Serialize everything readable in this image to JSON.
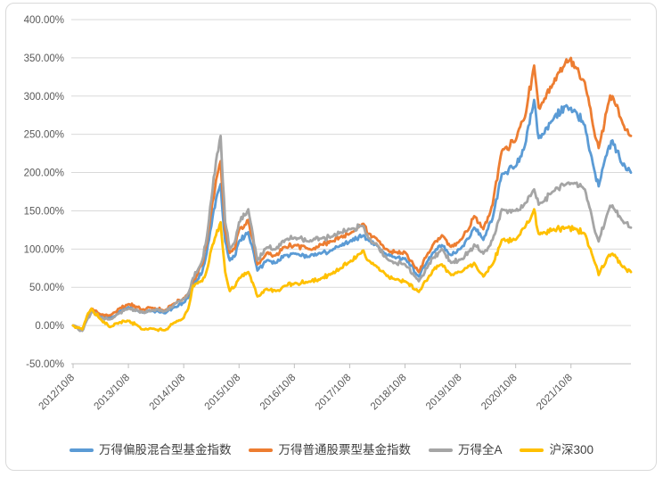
{
  "chart_data": {
    "type": "line",
    "title": "",
    "grid": "horizontal",
    "legend_position": "bottom",
    "x_axis": {
      "tick_labels": [
        "2012/10/8",
        "2013/10/8",
        "2014/10/8",
        "2015/10/8",
        "2016/10/8",
        "2017/10/8",
        "2018/10/8",
        "2019/10/8",
        "2020/10/8",
        "2021/10/8"
      ],
      "tick_months": [
        0,
        12,
        24,
        36,
        48,
        60,
        72,
        84,
        96,
        108
      ]
    },
    "y_axis": {
      "tick_labels": [
        "400.00%",
        "350.00%",
        "300.00%",
        "250.00%",
        "200.00%",
        "150.00%",
        "100.00%",
        "50.00%",
        "0.00%",
        "-50.00%"
      ],
      "tick_values": [
        400,
        350,
        300,
        250,
        200,
        150,
        100,
        50,
        0,
        -50
      ],
      "ylim": [
        -50,
        400
      ],
      "format": "percent"
    },
    "x_months": [
      0,
      1,
      2,
      3,
      4,
      6,
      8,
      10,
      12,
      14,
      15,
      17,
      20,
      22,
      24,
      25,
      26,
      27,
      28,
      29,
      30,
      31,
      32,
      33,
      34,
      35,
      36,
      38,
      40,
      42,
      44,
      46,
      48,
      51,
      54,
      56,
      58,
      60,
      63,
      64,
      66,
      68,
      70,
      72,
      75,
      77,
      78,
      80,
      82,
      84,
      86,
      87,
      89,
      91,
      93,
      96,
      98,
      100,
      101,
      102,
      104,
      107,
      109,
      111,
      113,
      114,
      116,
      117,
      119,
      121
    ],
    "x_dates": [
      "2012/10",
      "2012/11",
      "2012/12",
      "2013/1",
      "2013/2",
      "2013/4",
      "2013/6",
      "2013/8",
      "2013/10",
      "2013/12",
      "2014/1",
      "2014/3",
      "2014/6",
      "2014/8",
      "2014/10",
      "2014/11",
      "2014/12",
      "2015/1",
      "2015/2",
      "2015/3",
      "2015/4",
      "2015/5",
      "2015/6",
      "2015/7",
      "2015/8",
      "2015/9",
      "2015/10",
      "2015/12",
      "2016/2",
      "2016/4",
      "2016/6",
      "2016/8",
      "2016/10",
      "2017/1",
      "2017/4",
      "2017/6",
      "2017/8",
      "2017/10",
      "2018/1",
      "2018/2",
      "2018/4",
      "2018/6",
      "2018/8",
      "2018/10",
      "2019/1",
      "2019/3",
      "2019/4",
      "2019/6",
      "2019/8",
      "2019/10",
      "2019/12",
      "2020/1",
      "2020/3",
      "2020/5",
      "2020/7",
      "2020/10",
      "2020/12",
      "2021/2",
      "2021/3",
      "2021/4",
      "2021/6",
      "2021/9",
      "2021/11",
      "2022/1",
      "2022/3",
      "2022/4",
      "2022/6",
      "2022/7",
      "2022/9",
      "2022/11"
    ],
    "series": [
      {
        "name": "万得偏股混合型基金指数",
        "color": "#5B9BD5",
        "values": [
          0,
          -3,
          -6,
          8,
          20,
          12,
          10,
          18,
          24,
          20,
          17,
          19,
          16,
          24,
          30,
          36,
          52,
          60,
          70,
          95,
          130,
          165,
          185,
          110,
          85,
          90,
          110,
          122,
          72,
          85,
          82,
          92,
          94,
          90,
          95,
          98,
          105,
          110,
          118,
          112,
          104,
          92,
          88,
          88,
          64,
          85,
          95,
          105,
          92,
          100,
          115,
          128,
          112,
          140,
          198,
          208,
          235,
          295,
          245,
          250,
          268,
          288,
          280,
          262,
          205,
          182,
          230,
          242,
          212,
          200
        ]
      },
      {
        "name": "万得普通股票型基金指数",
        "color": "#ED7D31",
        "values": [
          0,
          -3,
          -6,
          9,
          22,
          14,
          13,
          22,
          28,
          24,
          21,
          23,
          20,
          29,
          36,
          42,
          58,
          68,
          80,
          108,
          150,
          190,
          215,
          125,
          95,
          100,
          125,
          138,
          80,
          95,
          92,
          103,
          105,
          100,
          106,
          110,
          116,
          120,
          133,
          120,
          112,
          100,
          96,
          96,
          70,
          95,
          105,
          118,
          103,
          112,
          128,
          143,
          126,
          158,
          228,
          242,
          272,
          340,
          285,
          292,
          315,
          348,
          338,
          318,
          255,
          232,
          288,
          300,
          268,
          248
        ]
      },
      {
        "name": "万得全A",
        "color": "#A5A5A5",
        "values": [
          0,
          -4,
          -7,
          7,
          18,
          10,
          8,
          16,
          22,
          20,
          17,
          20,
          19,
          28,
          34,
          42,
          62,
          72,
          85,
          115,
          165,
          215,
          248,
          135,
          100,
          108,
          135,
          152,
          85,
          102,
          100,
          112,
          115,
          110,
          114,
          116,
          122,
          126,
          130,
          115,
          105,
          88,
          82,
          80,
          58,
          78,
          88,
          100,
          82,
          86,
          97,
          106,
          94,
          112,
          152,
          150,
          160,
          178,
          158,
          162,
          175,
          185,
          186,
          178,
          128,
          110,
          148,
          157,
          138,
          128
        ]
      },
      {
        "name": "沪深300",
        "color": "#FFC000",
        "values": [
          0,
          -3,
          -5,
          12,
          22,
          8,
          -2,
          4,
          6,
          0,
          -5,
          -4,
          -6,
          4,
          10,
          22,
          52,
          55,
          58,
          72,
          100,
          118,
          135,
          70,
          45,
          50,
          62,
          70,
          38,
          48,
          45,
          52,
          55,
          57,
          62,
          68,
          75,
          83,
          98,
          85,
          76,
          65,
          60,
          58,
          44,
          62,
          72,
          80,
          66,
          70,
          78,
          82,
          64,
          80,
          112,
          112,
          128,
          152,
          120,
          122,
          125,
          128,
          126,
          120,
          85,
          66,
          90,
          94,
          78,
          70
        ]
      }
    ]
  },
  "style": {
    "background": "#FFFFFF",
    "border_color": "#D9D9D9",
    "grid_color": "#D9D9D9",
    "axis_line_color": "#BFBFBF",
    "axis_text_color": "#595959",
    "legend_text_color": "#404040"
  }
}
